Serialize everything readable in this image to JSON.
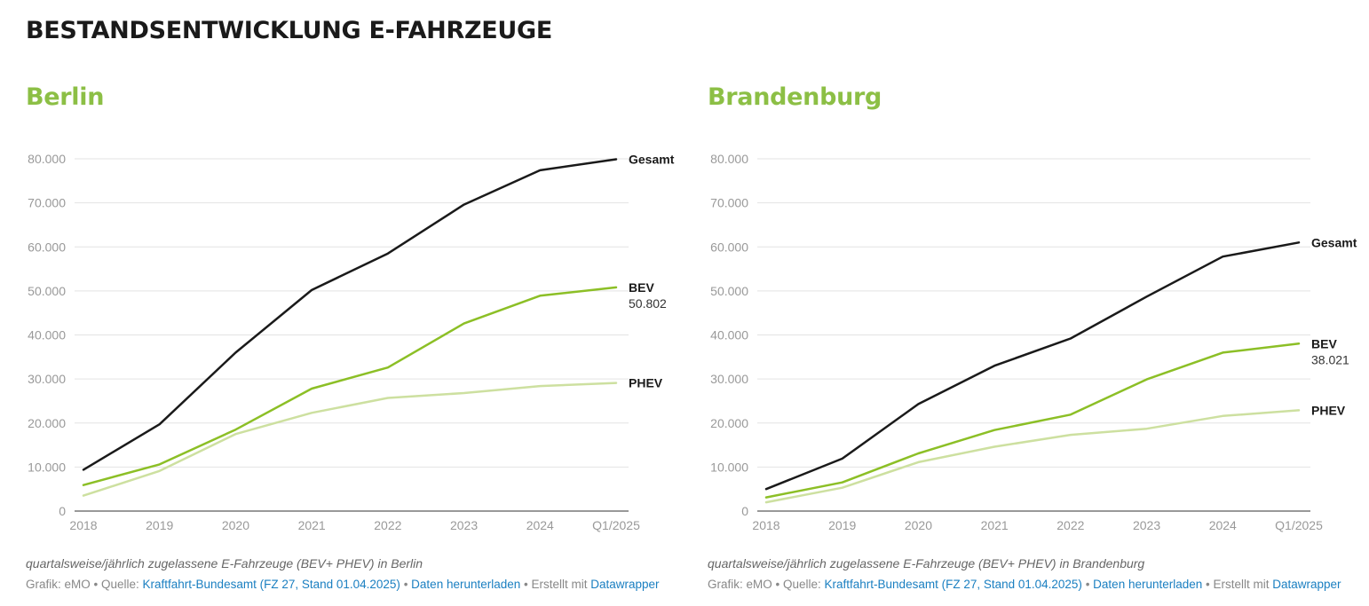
{
  "title": "BESTANDSENTWICKLUNG E-FAHRZEUGE",
  "colors": {
    "gesamt": "#1a1a1a",
    "bev": "#8cbf26",
    "phev": "#cde0a0",
    "grid": "#e3e3e3",
    "accent": "#8cbf45",
    "link": "#1a7fc1"
  },
  "panels": [
    {
      "title": "Berlin",
      "caption": "quartalsweise/jährlich zugelassene E-Fahrzeuge (BEV+ PHEV) in Berlin",
      "footer": {
        "prefix": "Grafik: eMO • Quelle: ",
        "source": "Kraftfahrt-Bundesamt (FZ 27, Stand 01.04.2025)",
        "sep1": " • ",
        "download": "Daten herunterladen",
        "sep2": " • Erstellt mit ",
        "tool": "Datawrapper"
      }
    },
    {
      "title": "Brandenburg",
      "caption": "quartalsweise/jährlich zugelassene E-Fahrzeuge (BEV+ PHEV) in Brandenburg",
      "footer": {
        "prefix": "Grafik: eMO • Quelle: ",
        "source": "Kraftfahrt-Bundesamt (FZ 27, Stand 01.04.2025)",
        "sep1": " • ",
        "download": "Daten herunterladen",
        "sep2": " • Erstellt mit ",
        "tool": "Datawrapper"
      }
    }
  ],
  "chart_data": [
    {
      "type": "line",
      "title": "Berlin",
      "x": [
        "2018",
        "2019",
        "2020",
        "2021",
        "2022",
        "2023",
        "2024",
        "Q1/2025"
      ],
      "ylim": [
        0,
        80000
      ],
      "yticks": [
        0,
        10000,
        20000,
        30000,
        40000,
        50000,
        60000,
        70000,
        80000
      ],
      "ytick_labels": [
        "0",
        "10.000",
        "20.000",
        "30.000",
        "40.000",
        "50.000",
        "60.000",
        "70.000",
        "80.000"
      ],
      "grid": true,
      "series": [
        {
          "name": "Gesamt",
          "key": "gesamt",
          "values": [
            9400,
            19700,
            36000,
            50200,
            58500,
            69600,
            77400,
            79900
          ]
        },
        {
          "name": "BEV",
          "key": "bev",
          "values": [
            5900,
            10600,
            18500,
            27800,
            32600,
            42600,
            48900,
            50802
          ],
          "end_label": "50.802"
        },
        {
          "name": "PHEV",
          "key": "phev",
          "values": [
            3500,
            9100,
            17500,
            22300,
            25700,
            26800,
            28400,
            29100
          ]
        }
      ]
    },
    {
      "type": "line",
      "title": "Brandenburg",
      "x": [
        "2018",
        "2019",
        "2020",
        "2021",
        "2022",
        "2023",
        "2024",
        "Q1/2025"
      ],
      "ylim": [
        0,
        80000
      ],
      "yticks": [
        0,
        10000,
        20000,
        30000,
        40000,
        50000,
        60000,
        70000,
        80000
      ],
      "ytick_labels": [
        "0",
        "10.000",
        "20.000",
        "30.000",
        "40.000",
        "50.000",
        "60.000",
        "70.000",
        "80.000"
      ],
      "grid": true,
      "series": [
        {
          "name": "Gesamt",
          "key": "gesamt",
          "values": [
            5000,
            11900,
            24300,
            33000,
            39200,
            48700,
            57800,
            61000
          ]
        },
        {
          "name": "BEV",
          "key": "bev",
          "values": [
            3100,
            6500,
            13100,
            18400,
            21900,
            29900,
            36000,
            38021
          ],
          "end_label": "38.021"
        },
        {
          "name": "PHEV",
          "key": "phev",
          "values": [
            2000,
            5300,
            11100,
            14600,
            17300,
            18700,
            21600,
            22900
          ]
        }
      ]
    }
  ]
}
